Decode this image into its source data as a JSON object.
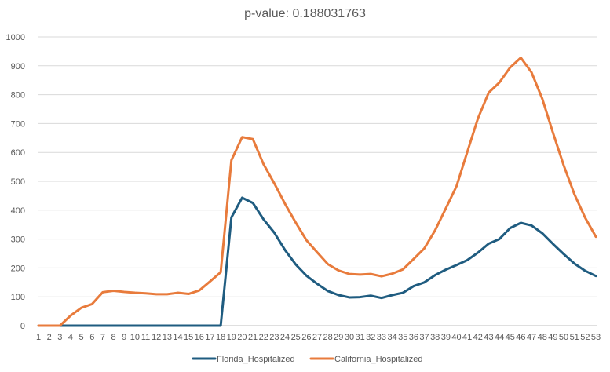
{
  "chart_data": {
    "type": "line",
    "title": "p-value: 0.188031763",
    "xlabel": "",
    "ylabel": "",
    "x": [
      1,
      2,
      3,
      4,
      5,
      6,
      7,
      8,
      9,
      10,
      11,
      12,
      13,
      14,
      15,
      16,
      17,
      18,
      19,
      20,
      21,
      22,
      23,
      24,
      25,
      26,
      27,
      28,
      29,
      30,
      31,
      32,
      33,
      34,
      35,
      36,
      37,
      38,
      39,
      40,
      41,
      42,
      43,
      44,
      45,
      46,
      47,
      48,
      49,
      50,
      51,
      52,
      53
    ],
    "ylim": [
      0,
      1000
    ],
    "yticks": [
      0,
      100,
      200,
      300,
      400,
      500,
      600,
      700,
      800,
      900,
      1000
    ],
    "grid": true,
    "legend_position": "bottom",
    "series": [
      {
        "name": "Florida_Hospitalized",
        "color": "#1F5C80",
        "values": [
          0,
          0,
          0,
          0,
          0,
          0,
          0,
          0,
          0,
          0,
          0,
          0,
          0,
          0,
          0,
          0,
          0,
          0,
          375,
          443,
          425,
          368,
          322,
          262,
          212,
          173,
          145,
          120,
          106,
          98,
          99,
          104,
          96,
          106,
          114,
          137,
          150,
          175,
          194,
          210,
          227,
          253,
          284,
          300,
          338,
          356,
          347,
          320,
          283,
          248,
          215,
          190,
          172
        ]
      },
      {
        "name": "California_Hospitalized",
        "color": "#E87B3C",
        "values": [
          0,
          0,
          0,
          35,
          62,
          75,
          116,
          121,
          117,
          114,
          112,
          109,
          109,
          114,
          110,
          122,
          153,
          185,
          573,
          653,
          646,
          559,
          493,
          422,
          357,
          296,
          254,
          213,
          191,
          179,
          177,
          179,
          171,
          180,
          195,
          231,
          268,
          330,
          406,
          483,
          601,
          718,
          807,
          842,
          894,
          928,
          877,
          786,
          668,
          555,
          455,
          374,
          308
        ]
      }
    ]
  }
}
